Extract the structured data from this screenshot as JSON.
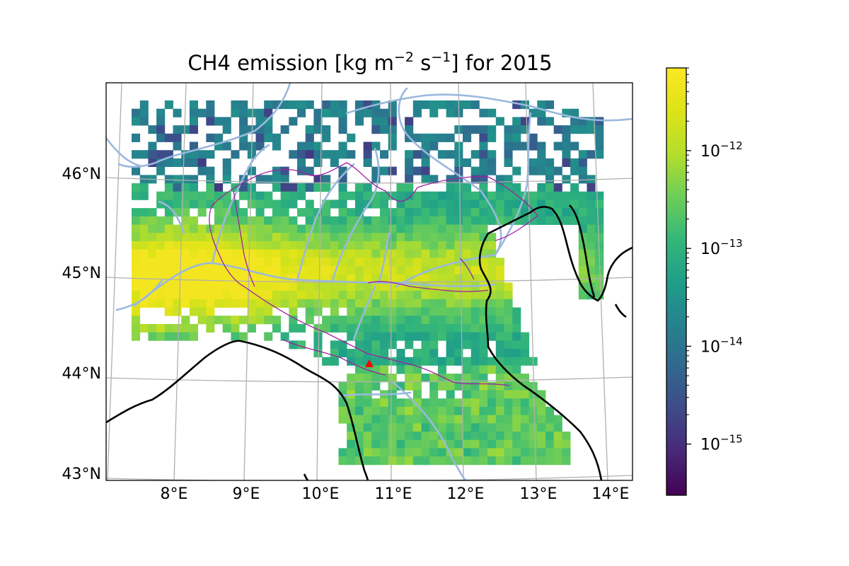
{
  "title": {
    "prefix": "CH4 emission [kg m",
    "exp1": "−2",
    "mid": " s",
    "exp2": "−1",
    "suffix": "] for 2015"
  },
  "map": {
    "lon_range": [
      7.1,
      14.3
    ],
    "lat_range": [
      42.92,
      46.98
    ],
    "lon_ticks": [
      "8°E",
      "9°E",
      "10°E",
      "11°E",
      "12°E",
      "13°E",
      "14°E"
    ],
    "lat_ticks": [
      "43°N",
      "44°N",
      "45°N",
      "46°N"
    ],
    "features": [
      "coastline-black",
      "country-borders-purple",
      "rivers-lightblue",
      "graticule-grey"
    ],
    "marker": {
      "shape": "triangle",
      "color": "#ff0000",
      "lon": 10.7,
      "lat": 44.12
    },
    "colors": {
      "coastline": "#000000",
      "borders": "#a020a0",
      "rivers": "#9ab8dd",
      "grid": "#b0b0b0"
    }
  },
  "colorbar": {
    "cmap": "viridis",
    "scale": "log",
    "min": 3e-16,
    "max": 7e-12,
    "tick_base": "10",
    "ticks": [
      {
        "exponent": "−12",
        "value": 1e-12
      },
      {
        "exponent": "−13",
        "value": 1e-13
      },
      {
        "exponent": "−14",
        "value": 1e-14
      },
      {
        "exponent": "−15",
        "value": 1e-15
      }
    ]
  }
}
